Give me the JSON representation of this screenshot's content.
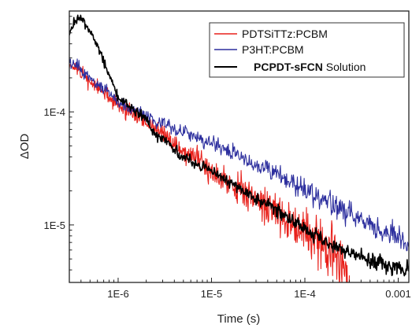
{
  "chart_data": {
    "type": "line",
    "xlabel": "Time (s)",
    "ylabel": "ΔOD",
    "x_scale": "log",
    "y_scale": "log",
    "xlim": [
      3e-07,
      0.0013
    ],
    "ylim": [
      3.1e-06,
      0.00078
    ],
    "x_ticks": [
      {
        "value": 1e-06,
        "label": "1E-6"
      },
      {
        "value": 1e-05,
        "label": "1E-5"
      },
      {
        "value": 0.0001,
        "label": "1E-4"
      },
      {
        "value": 0.001,
        "label": "0.001"
      }
    ],
    "y_ticks": [
      {
        "value": 0.0001,
        "label": "1E-4"
      },
      {
        "value": 1e-05,
        "label": "1E-5"
      }
    ],
    "grid": false,
    "legend_position": "top-right",
    "series": [
      {
        "name": "PDTSiTTz:PCBM",
        "color": "#e8211b",
        "noise": 0.045,
        "noise_growth": 3.5,
        "seed": 11,
        "x": [
          3e-07,
          5e-07,
          1e-06,
          2e-06,
          3e-06,
          5e-06,
          1e-05,
          2e-05,
          5e-05,
          0.0001,
          0.0002,
          0.0003
        ],
        "y": [
          0.00027,
          0.000185,
          0.000115,
          8.1e-05,
          6.3e-05,
          4.5e-05,
          3.1e-05,
          2.1e-05,
          1.3e-05,
          8.8e-06,
          5.6e-06,
          3.3e-06
        ]
      },
      {
        "name": "P3HT:PCBM",
        "color": "#2d2f9e",
        "noise": 0.04,
        "noise_growth": 1.2,
        "seed": 29,
        "x": [
          3e-07,
          5e-07,
          1e-06,
          2e-06,
          5e-06,
          1e-05,
          2e-05,
          5e-05,
          0.0001,
          0.0002,
          0.0005,
          0.001,
          0.0013
        ],
        "y": [
          0.00029,
          0.0002,
          0.000125,
          9.2e-05,
          6.6e-05,
          5.3e-05,
          4.1e-05,
          2.8e-05,
          2e-05,
          1.5e-05,
          1e-05,
          7.6e-06,
          6.6e-06
        ]
      },
      {
        "name": "PCPDT-sFCN Solution",
        "color": "#000000",
        "noise": 0.03,
        "noise_growth": 1.0,
        "seed": 53,
        "x": [
          3e-07,
          3.5e-07,
          4e-07,
          5e-07,
          7e-07,
          1e-06,
          2e-06,
          2.5e-06,
          3e-06,
          5e-06,
          1e-05,
          2e-05,
          5e-05,
          0.0001,
          0.0002,
          0.0005,
          0.001,
          0.0013
        ],
        "y": [
          0.0005,
          0.00066,
          0.00068,
          0.00052,
          0.00028,
          0.000135,
          8.6e-05,
          6.2e-05,
          5.8e-05,
          4e-05,
          3e-05,
          2.1e-05,
          1.35e-05,
          9.4e-06,
          6.6e-06,
          4.8e-06,
          4.2e-06,
          4e-06
        ]
      }
    ],
    "legend": [
      {
        "name_parts": [
          {
            "text": "PDTSiTTz:PCBM",
            "bold": false
          }
        ],
        "color": "#e8211b"
      },
      {
        "name_parts": [
          {
            "text": "P3HT:PCBM",
            "bold": false
          }
        ],
        "color": "#2d2f9e"
      },
      {
        "name_parts": [
          {
            "text": "PCPDT-sFCN",
            "bold": true
          },
          {
            "text": " Solution",
            "bold": false
          }
        ],
        "color": "#000000"
      }
    ]
  }
}
